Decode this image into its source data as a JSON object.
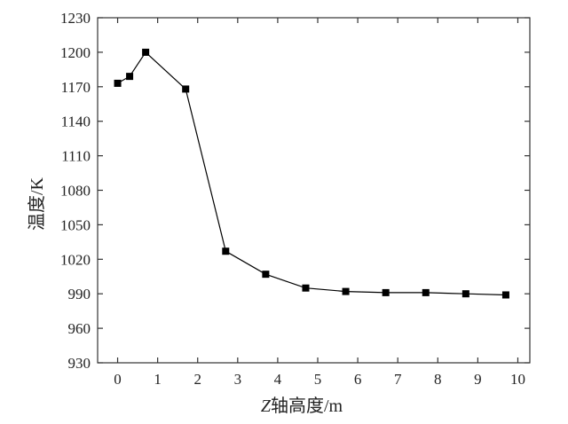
{
  "chart_data": {
    "type": "line",
    "title": "",
    "xlabel": "Z轴高度/m",
    "ylabel": "温度/K",
    "xlim": [
      -0.5,
      10.3
    ],
    "ylim": [
      930,
      1230
    ],
    "xticks": [
      0,
      1,
      2,
      3,
      4,
      5,
      6,
      7,
      8,
      9,
      10
    ],
    "yticks": [
      930,
      960,
      990,
      1020,
      1050,
      1080,
      1110,
      1140,
      1170,
      1200,
      1230
    ],
    "grid": false,
    "legend": "none",
    "series": [
      {
        "marker": "square",
        "color": "#000000",
        "x": [
          0,
          0.3,
          0.7,
          1.7,
          2.7,
          3.7,
          4.7,
          5.7,
          6.7,
          7.7,
          8.7,
          9.7
        ],
        "y": [
          1173,
          1179,
          1200,
          1168,
          1027,
          1007,
          995,
          992,
          991,
          991,
          990,
          989
        ]
      }
    ]
  }
}
